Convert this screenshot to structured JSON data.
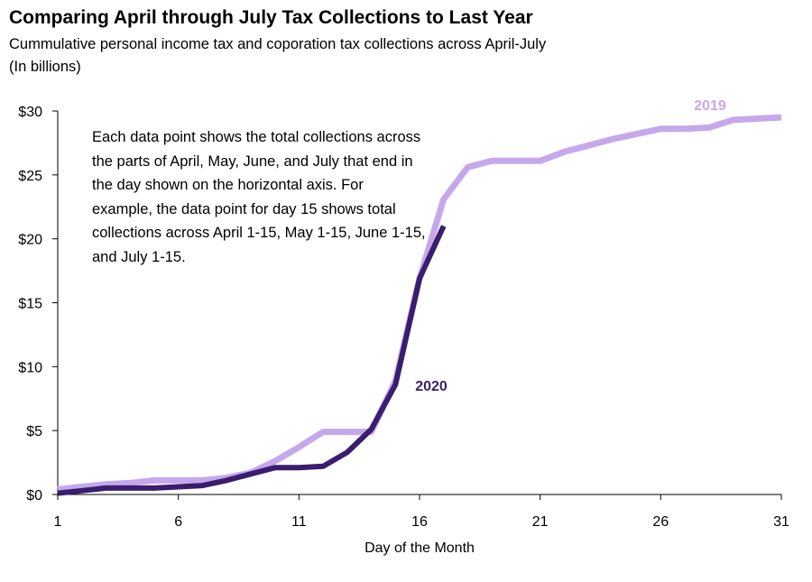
{
  "chart_data": {
    "type": "line",
    "title": "Comparing April through July Tax Collections to Last Year",
    "subtitle": "Cummulative personal income tax and coporation tax collections across April-July",
    "units_note": "(In billions)",
    "xlabel": "Day of the Month",
    "ylabel": "",
    "xlim": [
      1,
      31
    ],
    "ylim": [
      0,
      30
    ],
    "x_ticks": [
      "1",
      "6",
      "11",
      "16",
      "21",
      "26",
      "31"
    ],
    "x_tick_values": [
      1,
      6,
      11,
      16,
      21,
      26,
      31
    ],
    "y_ticks": [
      "$0",
      "$5",
      "$10",
      "$15",
      "$20",
      "$25",
      "$30"
    ],
    "y_tick_values": [
      0,
      5,
      10,
      15,
      20,
      25,
      30
    ],
    "annotation": "Each data point shows the total collections across the parts of April, May, June, and July that end in the day shown on the horizontal axis. For example, the data point for day 15 shows total collections across  April 1-15, May 1-15, June 1-15, and July 1-15.",
    "series": [
      {
        "name": "2019",
        "color": "#c5a8ec",
        "x": [
          1,
          2,
          3,
          4,
          5,
          6,
          7,
          8,
          9,
          10,
          11,
          12,
          13,
          14,
          15,
          16,
          17,
          18,
          19,
          20,
          21,
          22,
          23,
          24,
          25,
          26,
          27,
          28,
          29,
          30,
          31
        ],
        "values": [
          0.4,
          0.6,
          0.8,
          0.9,
          1.1,
          1.1,
          1.1,
          1.3,
          1.7,
          2.6,
          3.7,
          4.9,
          4.9,
          4.9,
          8.9,
          16.9,
          23.1,
          25.6,
          26.1,
          26.1,
          26.1,
          26.8,
          27.3,
          27.8,
          28.2,
          28.6,
          28.6,
          28.7,
          29.3,
          29.4,
          29.5
        ]
      },
      {
        "name": "2020",
        "color": "#3a1d6e",
        "x": [
          1,
          2,
          3,
          4,
          5,
          6,
          7,
          8,
          9,
          10,
          11,
          12,
          13,
          14,
          15,
          16,
          17
        ],
        "values": [
          0.1,
          0.3,
          0.5,
          0.5,
          0.5,
          0.6,
          0.7,
          1.1,
          1.6,
          2.1,
          2.1,
          2.2,
          3.3,
          5.1,
          8.6,
          16.9,
          21.0
        ]
      }
    ]
  }
}
